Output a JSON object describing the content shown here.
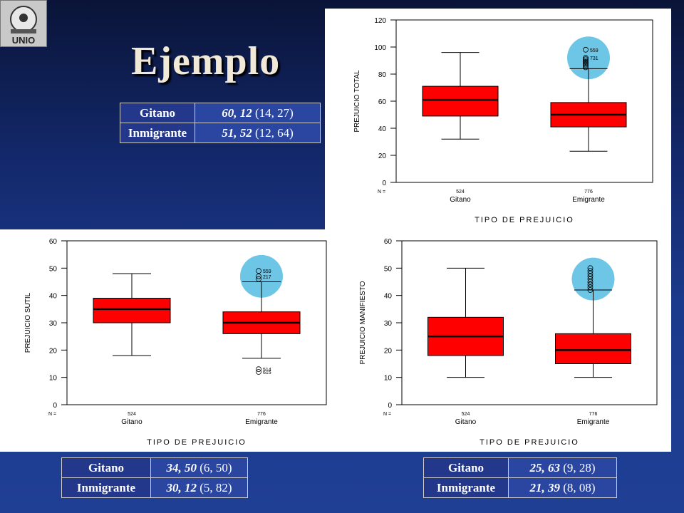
{
  "slide": {
    "title": "Ejemplo"
  },
  "logo": {
    "text": "UNIO",
    "icon": "university-logo-icon"
  },
  "tables": [
    {
      "rows": [
        {
          "group": "Gitano",
          "mean": "60, 12",
          "sd": "(14, 27)"
        },
        {
          "group": "Inmigrante",
          "mean": "51, 52",
          "sd": "(12, 64)"
        }
      ]
    },
    {
      "rows": [
        {
          "group": "Gitano",
          "mean": "34, 50",
          "sd": "(6, 50)"
        },
        {
          "group": "Inmigrante",
          "mean": "30, 12",
          "sd": "(5, 82)"
        }
      ]
    },
    {
      "rows": [
        {
          "group": "Gitano",
          "mean": "25, 63",
          "sd": "(9, 28)"
        },
        {
          "group": "Inmigrante",
          "mean": "21, 39",
          "sd": "(8, 08)"
        }
      ]
    }
  ],
  "colors": {
    "box": "#ff0000",
    "highlight": "#6ec6e6",
    "background": "#1c3a8c"
  },
  "chart_data": [
    {
      "type": "box",
      "ylabel": "PREJUICIO TOTAL",
      "xlabel": "TIPO DE PREJUICIO",
      "ylim": [
        0,
        120
      ],
      "yticks": [
        0,
        20,
        40,
        60,
        80,
        100,
        120
      ],
      "n_label": "N =",
      "categories": [
        "Gitano",
        "Emigrante"
      ],
      "n": [
        "524",
        "776"
      ],
      "boxes": [
        {
          "min": 32,
          "q1": 49,
          "median": 61,
          "q3": 71,
          "max": 96
        },
        {
          "min": 23,
          "q1": 41,
          "median": 50,
          "q3": 59,
          "max": 84
        }
      ],
      "outliers": [
        {
          "box": 1,
          "values": [
            98,
            92,
            91,
            90,
            89,
            88,
            87,
            86,
            85
          ],
          "labels": [
            "559",
            "731",
            "",
            "",
            "",
            "",
            "",
            "",
            ""
          ]
        }
      ],
      "highlights": [
        {
          "box": 1,
          "center": 92
        }
      ]
    },
    {
      "type": "box",
      "ylabel": "PREJUICIO SUTIL",
      "xlabel": "TIPO DE PREJUICIO",
      "ylim": [
        0,
        60
      ],
      "yticks": [
        0,
        10,
        20,
        30,
        40,
        50,
        60
      ],
      "n_label": "N =",
      "categories": [
        "Gitano",
        "Emigrante"
      ],
      "n": [
        "524",
        "776"
      ],
      "boxes": [
        {
          "min": 18,
          "q1": 30,
          "median": 35,
          "q3": 39,
          "max": 48
        },
        {
          "min": 17,
          "q1": 26,
          "median": 30,
          "q3": 34,
          "max": 45
        }
      ],
      "outliers": [
        {
          "box": 1,
          "values": [
            49,
            47,
            46,
            13,
            12
          ],
          "labels": [
            "559",
            "217",
            "",
            "514",
            "615"
          ]
        }
      ],
      "highlights": [
        {
          "box": 1,
          "center": 47
        }
      ]
    },
    {
      "type": "box",
      "ylabel": "PREJUICIO MANIFIESTO",
      "xlabel": "TIPO DE PREJUICIO",
      "ylim": [
        0,
        60
      ],
      "yticks": [
        0,
        10,
        20,
        30,
        40,
        50,
        60
      ],
      "n_label": "N =",
      "categories": [
        "Gitano",
        "Emigrante"
      ],
      "n": [
        "524",
        "776"
      ],
      "boxes": [
        {
          "min": 10,
          "q1": 18,
          "median": 25,
          "q3": 32,
          "max": 50
        },
        {
          "min": 10,
          "q1": 15,
          "median": 20,
          "q3": 26,
          "max": 42
        }
      ],
      "outliers": [
        {
          "box": 1,
          "values": [
            50,
            49,
            48,
            47,
            46,
            45,
            44,
            43,
            42
          ],
          "labels": [
            "",
            "",
            "",
            "",
            "",
            "",
            "",
            "",
            ""
          ]
        }
      ],
      "highlights": [
        {
          "box": 1,
          "center": 46
        }
      ]
    }
  ]
}
